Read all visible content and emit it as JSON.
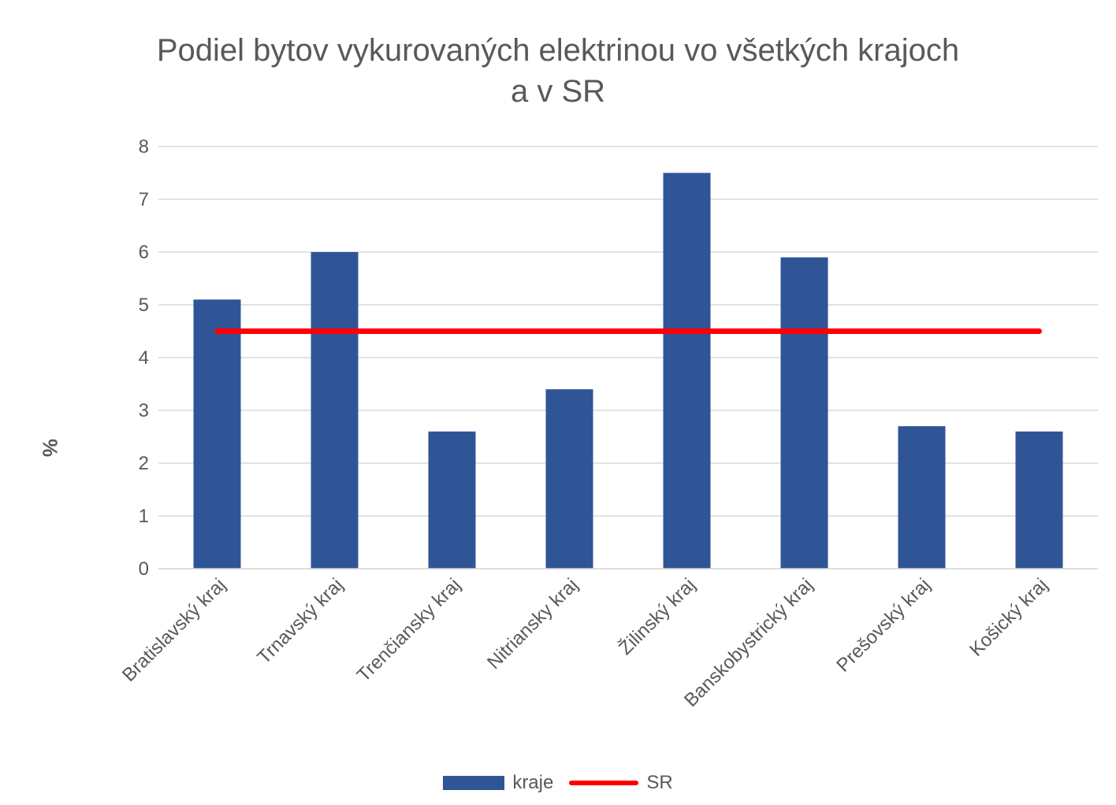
{
  "chart_data": {
    "type": "bar",
    "title": [
      "Podiel bytov vykurovaných elektrinou vo všetkých krajoch",
      "a v SR"
    ],
    "ylabel": "%",
    "xlabel": "",
    "ylim": [
      0,
      8
    ],
    "yticks": [
      0,
      1,
      2,
      3,
      4,
      5,
      6,
      7,
      8
    ],
    "grid": true,
    "legend_position": "bottom",
    "categories": [
      "Bratislavský kraj",
      "Trnavský kraj",
      "Trenčiansky kraj",
      "Nitriansky kraj",
      "Žilinský kraj",
      "Banskobystrický kraj",
      "Prešovský kraj",
      "Košický kraj"
    ],
    "series": [
      {
        "name": "kraje",
        "type": "bar",
        "color": "#2F5597",
        "values": [
          5.1,
          6.0,
          2.6,
          3.4,
          7.5,
          5.9,
          2.7,
          2.6
        ]
      },
      {
        "name": "SR",
        "type": "line",
        "color": "#FF0000",
        "values": [
          4.5,
          4.5,
          4.5,
          4.5,
          4.5,
          4.5,
          4.5,
          4.5
        ]
      }
    ]
  }
}
